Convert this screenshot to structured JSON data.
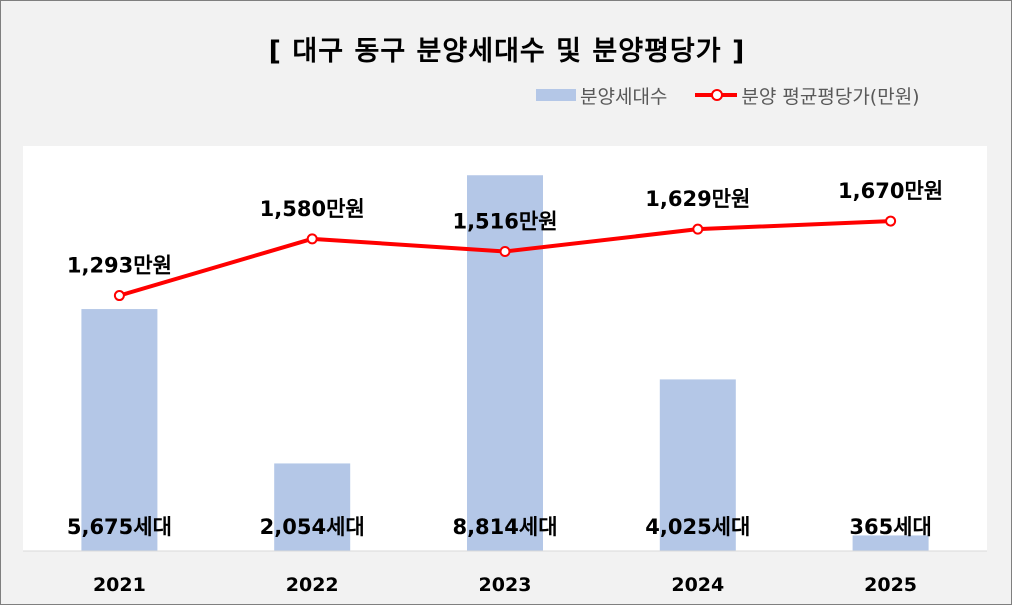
{
  "chart_data": {
    "type": "bar",
    "title": "[ 대구 동구 분양세대수 및 분양평당가 ]",
    "categories": [
      "2021",
      "2022",
      "2023",
      "2024",
      "2025"
    ],
    "series": [
      {
        "name": "분양세대수",
        "type": "bar",
        "axis": "left",
        "values": [
          5675,
          2054,
          8814,
          4025,
          365
        ],
        "labels": [
          "5,675세대",
          "2,054세대",
          "8,814세대",
          "4,025세대",
          "365세대"
        ],
        "color": "#b4c7e7"
      },
      {
        "name": "분양 평균평당가(만원)",
        "type": "line",
        "axis": "right",
        "values": [
          1293,
          1580,
          1516,
          1629,
          1670
        ],
        "labels": [
          "1,293만원",
          "1,580만원",
          "1,516만원",
          "1,629만원",
          "1,670만원"
        ],
        "color": "#ff0000"
      }
    ],
    "ylim": [
      0,
      9500
    ],
    "y2lim": [
      0,
      2050
    ],
    "grid": false,
    "legend_position": "top-right"
  }
}
